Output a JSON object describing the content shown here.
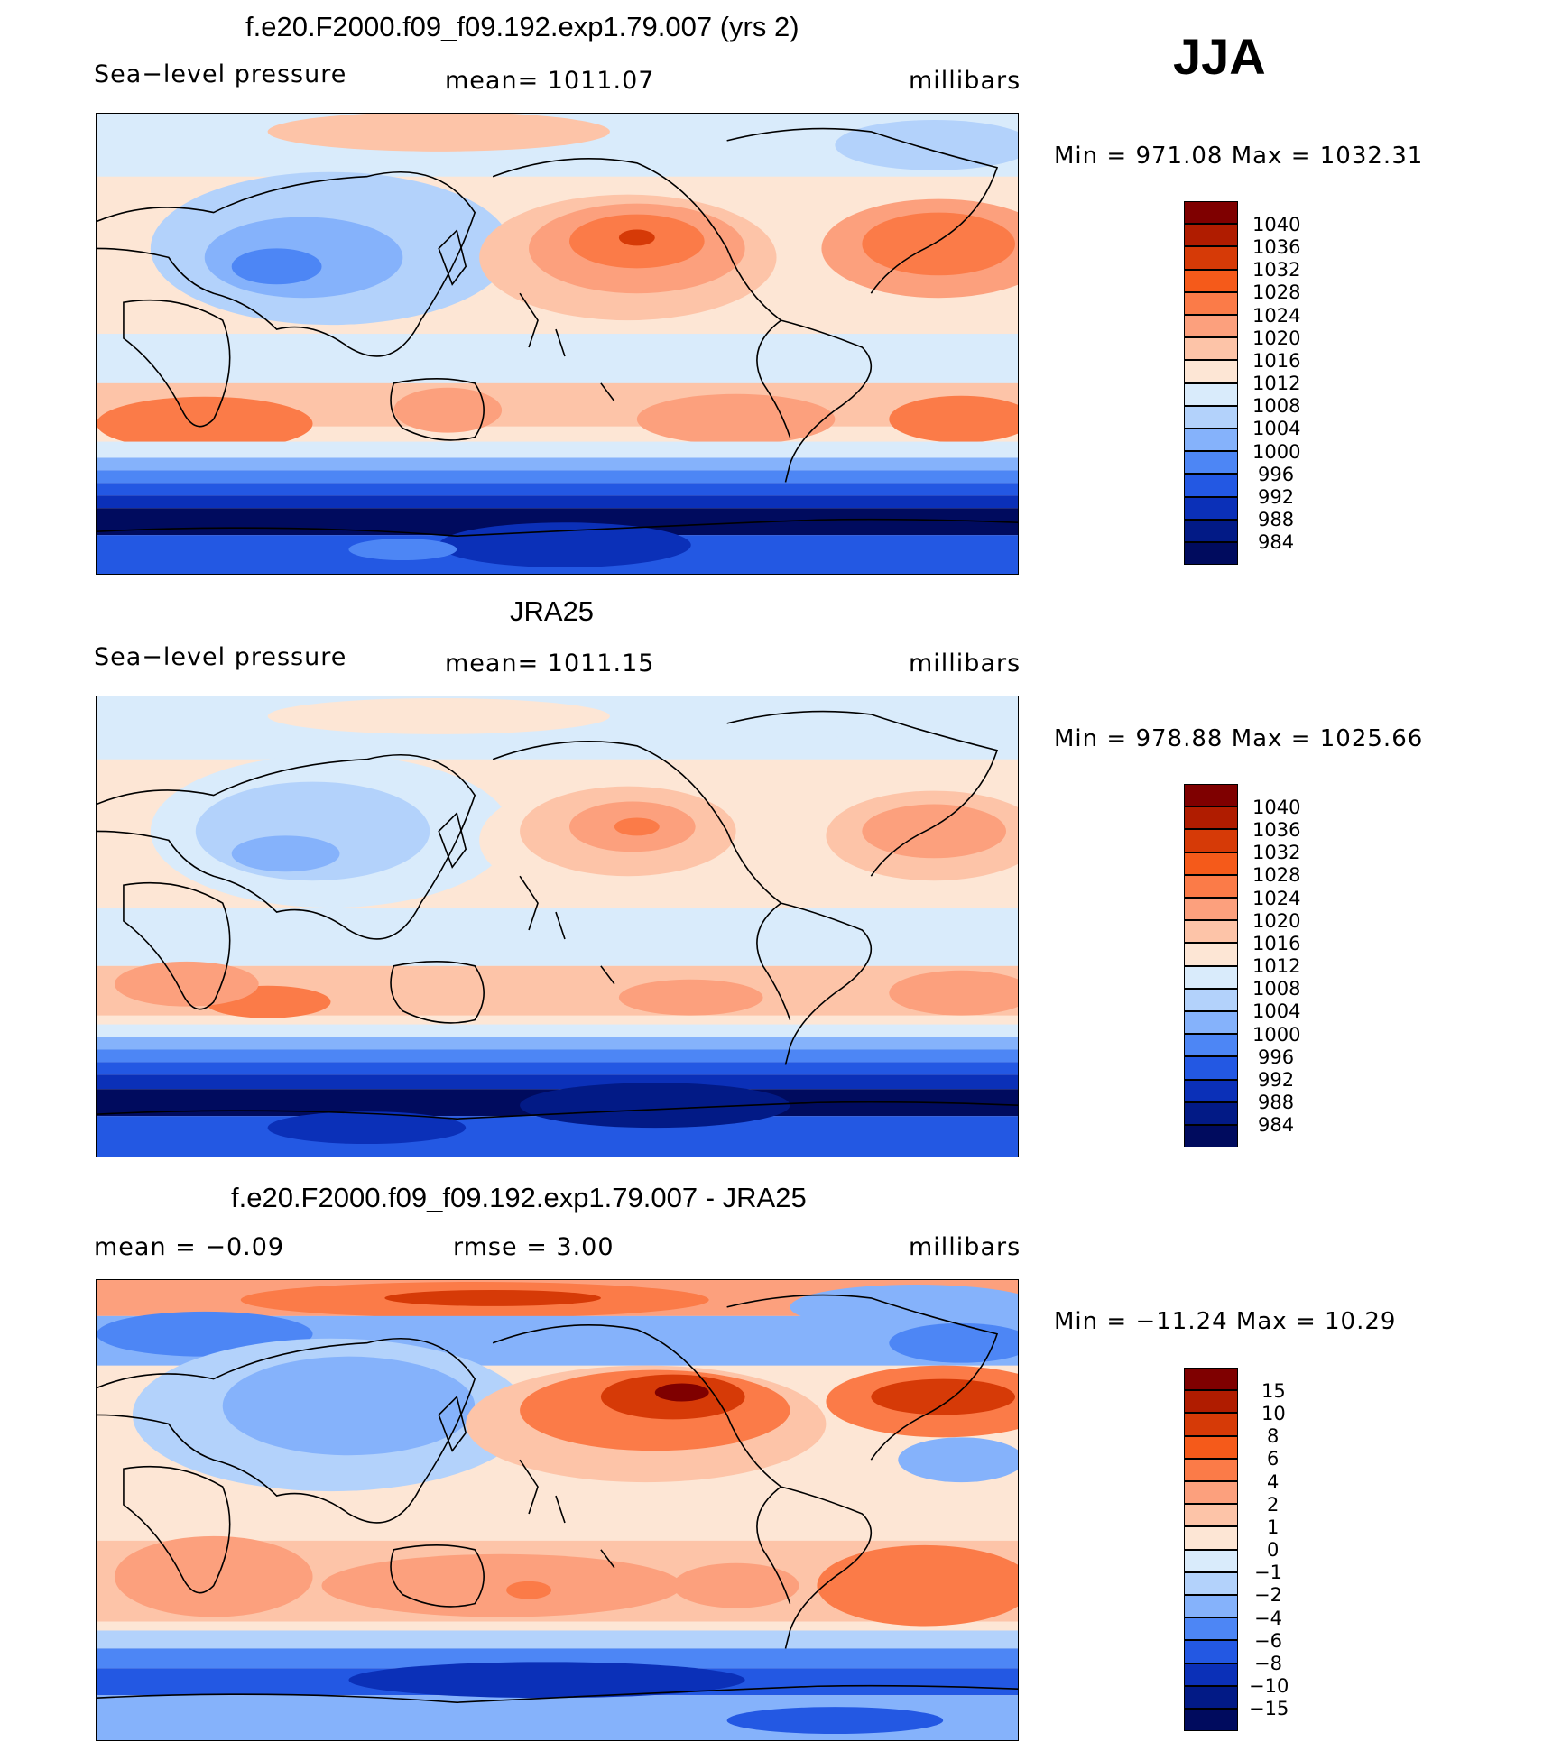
{
  "season": "JJA",
  "panels": [
    {
      "title": "f.e20.F2000.f09_f09.192.exp1.79.007 (yrs 2)",
      "left_label": "Sea−level pressure",
      "center_label": "mean=  1011.07",
      "units": "millibars",
      "minmax": "Min  =  971.08  Max  =  1032.31",
      "colorbar": {
        "labels": [
          "1040",
          "1036",
          "1032",
          "1028",
          "1024",
          "1020",
          "1016",
          "1012",
          "1008",
          "1004",
          "1000",
          "996",
          "992",
          "988",
          "984"
        ],
        "colors": [
          "#7f0000",
          "#b01c00",
          "#d63a07",
          "#f55a1a",
          "#fb7b48",
          "#fca07d",
          "#fdc4a8",
          "#fde6d5",
          "#d9ebfb",
          "#b3d2fb",
          "#85b2fb",
          "#4d86f5",
          "#2358e3",
          "#0b30b8",
          "#021a86",
          "#000b5e"
        ]
      }
    },
    {
      "title": "JRA25",
      "left_label": "Sea−level pressure",
      "center_label": "mean=  1011.15",
      "units": "millibars",
      "minmax": "Min  =  978.88  Max  =  1025.66",
      "colorbar": {
        "labels": [
          "1040",
          "1036",
          "1032",
          "1028",
          "1024",
          "1020",
          "1016",
          "1012",
          "1008",
          "1004",
          "1000",
          "996",
          "992",
          "988",
          "984"
        ],
        "colors": [
          "#7f0000",
          "#b01c00",
          "#d63a07",
          "#f55a1a",
          "#fb7b48",
          "#fca07d",
          "#fdc4a8",
          "#fde6d5",
          "#d9ebfb",
          "#b3d2fb",
          "#85b2fb",
          "#4d86f5",
          "#2358e3",
          "#0b30b8",
          "#021a86",
          "#000b5e"
        ]
      }
    },
    {
      "title": "f.e20.F2000.f09_f09.192.exp1.79.007 - JRA25",
      "left_label": "mean  =    −0.09",
      "center_label": "rmse  =      3.00",
      "units": "millibars",
      "minmax": "Min  =  −11.24  Max  =    10.29",
      "colorbar": {
        "labels": [
          "15",
          "10",
          "8",
          "6",
          "4",
          "2",
          "1",
          "0",
          "−1",
          "−2",
          "−4",
          "−6",
          "−8",
          "−10",
          "−15"
        ],
        "colors": [
          "#7f0000",
          "#b01c00",
          "#d63a07",
          "#f55a1a",
          "#fb7b48",
          "#fca07d",
          "#fdc4a8",
          "#fde6d5",
          "#d9ebfb",
          "#b3d2fb",
          "#85b2fb",
          "#4d86f5",
          "#2358e3",
          "#0b30b8",
          "#021a86",
          "#000b5e"
        ]
      }
    }
  ]
}
